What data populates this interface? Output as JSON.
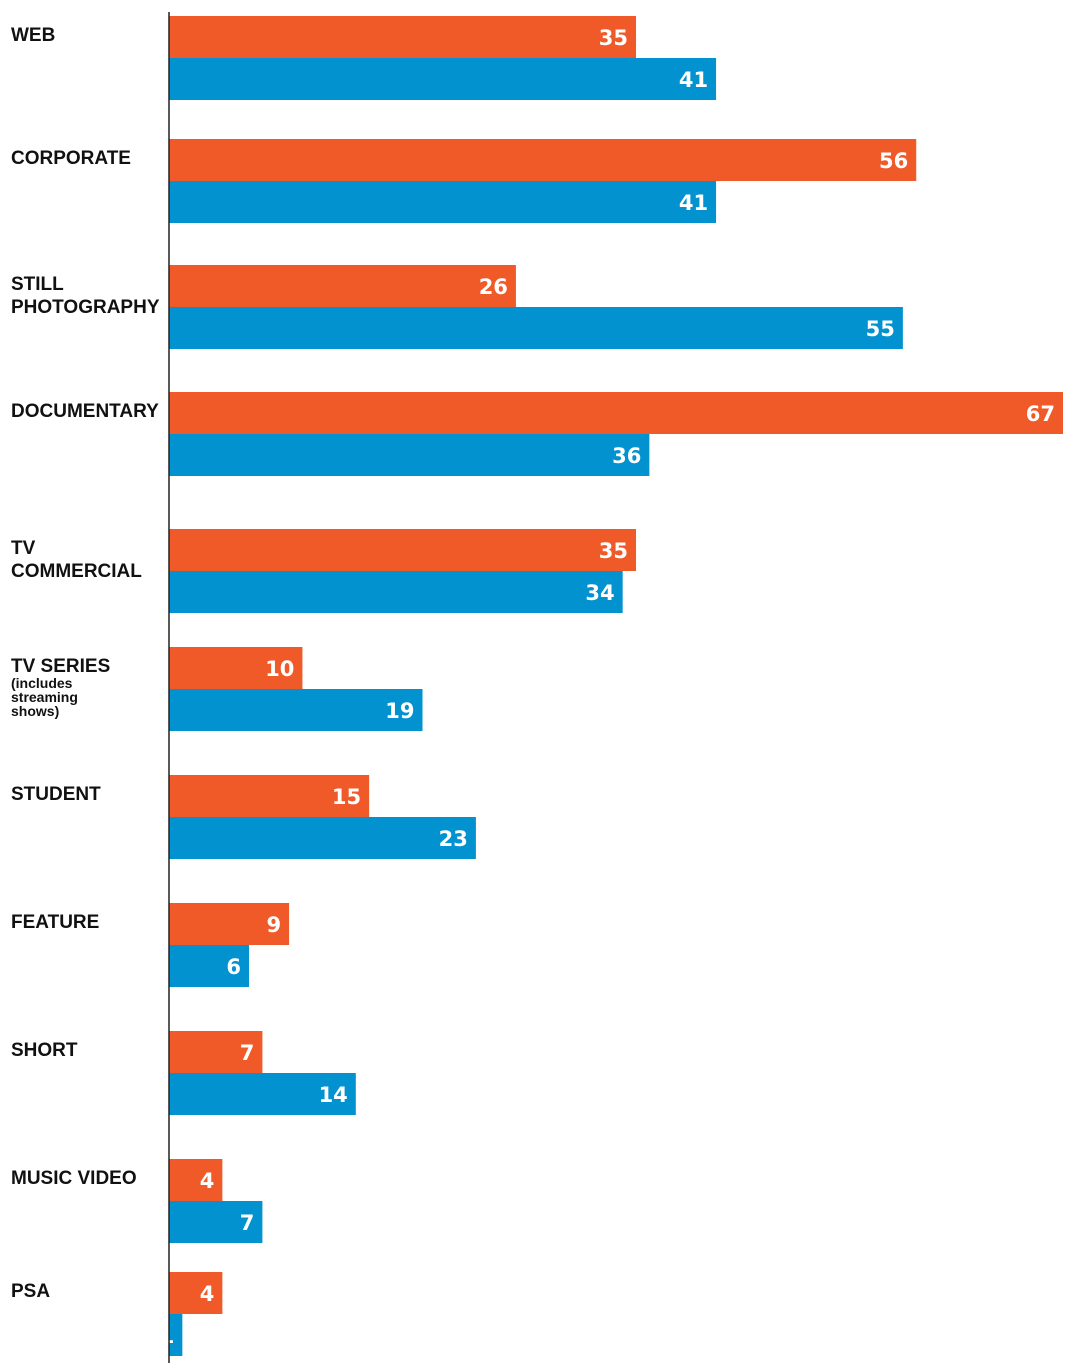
{
  "chart_data": {
    "type": "bar",
    "orientation": "horizontal",
    "categories": [
      {
        "lines": [
          "WEB"
        ],
        "sub": []
      },
      {
        "lines": [
          "CORPORATE"
        ],
        "sub": []
      },
      {
        "lines": [
          "STILL",
          "PHOTOGRAPHY"
        ],
        "sub": []
      },
      {
        "lines": [
          "DOCUMENTARY"
        ],
        "sub": []
      },
      {
        "lines": [
          "TV",
          "COMMERCIAL"
        ],
        "sub": []
      },
      {
        "lines": [
          "TV SERIES"
        ],
        "sub": [
          "(includes",
          "streaming",
          "shows)"
        ]
      },
      {
        "lines": [
          "STUDENT"
        ],
        "sub": []
      },
      {
        "lines": [
          "FEATURE"
        ],
        "sub": []
      },
      {
        "lines": [
          "SHORT"
        ],
        "sub": []
      },
      {
        "lines": [
          "MUSIC VIDEO"
        ],
        "sub": []
      },
      {
        "lines": [
          "PSA"
        ],
        "sub": []
      }
    ],
    "series": [
      {
        "color": "#f05a28",
        "values": [
          35,
          56,
          26,
          67,
          35,
          10,
          15,
          9,
          7,
          4,
          4
        ]
      },
      {
        "color": "#0392d0",
        "values": [
          41,
          41,
          55,
          36,
          34,
          19,
          23,
          6,
          14,
          7,
          1
        ]
      }
    ],
    "xlim": [
      0,
      67
    ],
    "grid": false,
    "legend": "none"
  }
}
